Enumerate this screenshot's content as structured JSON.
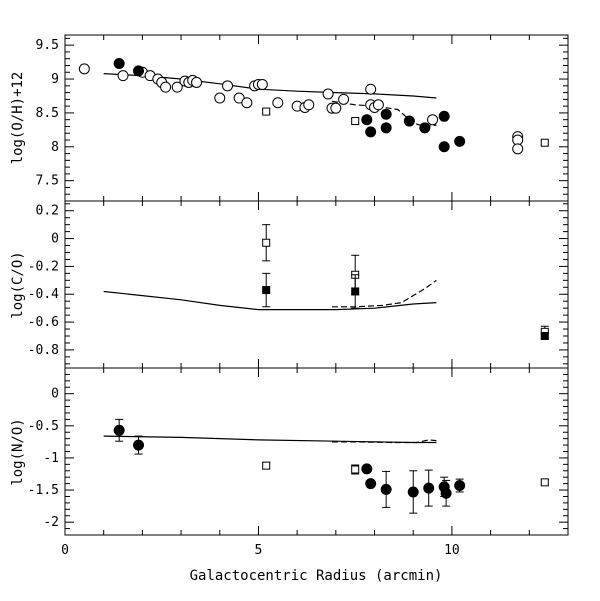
{
  "chart_data": [
    {
      "type": "scatter",
      "panel": "top",
      "ylabel": "log(O/H)+12",
      "xlim": [
        0,
        13
      ],
      "ylim": [
        7.2,
        9.65
      ],
      "x_ticks_major": [
        0,
        5,
        10
      ],
      "y_ticks_major": [
        7.5,
        8,
        8.5,
        9,
        9.5
      ],
      "y_tick_labels": [
        "7.5",
        "8",
        "8.5",
        "9",
        "9.5"
      ],
      "series": [
        {
          "marker": "open-circle",
          "points": [
            {
              "x": 0.5,
              "y": 9.15
            },
            {
              "x": 1.5,
              "y": 9.05
            },
            {
              "x": 2.0,
              "y": 9.1
            },
            {
              "x": 2.2,
              "y": 9.05
            },
            {
              "x": 2.4,
              "y": 9.0
            },
            {
              "x": 2.5,
              "y": 8.95
            },
            {
              "x": 2.6,
              "y": 8.88
            },
            {
              "x": 2.9,
              "y": 8.88
            },
            {
              "x": 3.1,
              "y": 8.97
            },
            {
              "x": 3.2,
              "y": 8.95
            },
            {
              "x": 3.3,
              "y": 8.98
            },
            {
              "x": 3.4,
              "y": 8.95
            },
            {
              "x": 4.0,
              "y": 8.72
            },
            {
              "x": 4.2,
              "y": 8.9
            },
            {
              "x": 4.5,
              "y": 8.72
            },
            {
              "x": 4.7,
              "y": 8.65
            },
            {
              "x": 4.9,
              "y": 8.9
            },
            {
              "x": 5.0,
              "y": 8.92
            },
            {
              "x": 5.1,
              "y": 8.92
            },
            {
              "x": 5.5,
              "y": 8.65
            },
            {
              "x": 6.0,
              "y": 8.6
            },
            {
              "x": 6.2,
              "y": 8.58
            },
            {
              "x": 6.3,
              "y": 8.62
            },
            {
              "x": 6.8,
              "y": 8.78
            },
            {
              "x": 6.9,
              "y": 8.57
            },
            {
              "x": 7.0,
              "y": 8.57
            },
            {
              "x": 7.2,
              "y": 8.7
            },
            {
              "x": 7.9,
              "y": 8.85
            },
            {
              "x": 7.9,
              "y": 8.62
            },
            {
              "x": 8.0,
              "y": 8.58
            },
            {
              "x": 8.1,
              "y": 8.62
            },
            {
              "x": 9.5,
              "y": 8.4
            },
            {
              "x": 11.7,
              "y": 8.15
            },
            {
              "x": 11.7,
              "y": 8.1
            },
            {
              "x": 11.7,
              "y": 7.97
            }
          ]
        },
        {
          "marker": "filled-circle",
          "points": [
            {
              "x": 1.4,
              "y": 9.23
            },
            {
              "x": 1.9,
              "y": 9.12
            },
            {
              "x": 7.8,
              "y": 8.4
            },
            {
              "x": 7.9,
              "y": 8.22
            },
            {
              "x": 8.3,
              "y": 8.48
            },
            {
              "x": 8.3,
              "y": 8.28
            },
            {
              "x": 8.9,
              "y": 8.38
            },
            {
              "x": 9.3,
              "y": 8.28
            },
            {
              "x": 9.8,
              "y": 8.45
            },
            {
              "x": 9.8,
              "y": 8.0
            },
            {
              "x": 10.2,
              "y": 8.08
            }
          ]
        },
        {
          "marker": "open-square",
          "points": [
            {
              "x": 5.2,
              "y": 8.52,
              "err": 0.03
            },
            {
              "x": 7.5,
              "y": 8.38,
              "err": 0.03
            },
            {
              "x": 12.4,
              "y": 8.06,
              "err": 0.03
            }
          ]
        }
      ],
      "models": [
        {
          "style": "solid",
          "points": [
            [
              1,
              9.08
            ],
            [
              2,
              9.05
            ],
            [
              3,
              9.0
            ],
            [
              4,
              8.93
            ],
            [
              5,
              8.85
            ],
            [
              6,
              8.82
            ],
            [
              7,
              8.8
            ],
            [
              8,
              8.78
            ],
            [
              9,
              8.75
            ],
            [
              9.6,
              8.72
            ]
          ]
        },
        {
          "style": "dashed",
          "points": [
            [
              6.9,
              8.67
            ],
            [
              7.5,
              8.62
            ],
            [
              8.0,
              8.6
            ],
            [
              8.6,
              8.55
            ],
            [
              9.0,
              8.35
            ],
            [
              9.3,
              8.3
            ],
            [
              9.6,
              8.32
            ]
          ]
        }
      ]
    },
    {
      "type": "scatter",
      "panel": "middle",
      "ylabel": "log(C/O)",
      "xlim": [
        0,
        13
      ],
      "ylim": [
        -0.93,
        0.27
      ],
      "x_ticks_major": [
        0,
        5,
        10
      ],
      "y_ticks_major": [
        -0.8,
        -0.6,
        -0.4,
        -0.2,
        0,
        0.2
      ],
      "y_tick_labels": [
        "-0.8",
        "-0.6",
        "-0.4",
        "-0.2",
        "0",
        "0.2"
      ],
      "series": [
        {
          "marker": "open-square",
          "points": [
            {
              "x": 5.2,
              "y": -0.03,
              "err": 0.13
            },
            {
              "x": 7.5,
              "y": -0.26,
              "err": 0.14
            },
            {
              "x": 12.4,
              "y": -0.67,
              "err": 0.04
            }
          ]
        },
        {
          "marker": "filled-square",
          "points": [
            {
              "x": 5.2,
              "y": -0.37,
              "err": 0.12
            },
            {
              "x": 7.5,
              "y": -0.38,
              "err": 0.12
            },
            {
              "x": 12.4,
              "y": -0.7,
              "err": 0.02
            }
          ]
        }
      ],
      "models": [
        {
          "style": "solid",
          "points": [
            [
              1,
              -0.38
            ],
            [
              2,
              -0.41
            ],
            [
              3,
              -0.44
            ],
            [
              4,
              -0.48
            ],
            [
              5,
              -0.51
            ],
            [
              6,
              -0.51
            ],
            [
              7,
              -0.51
            ],
            [
              8,
              -0.5
            ],
            [
              9,
              -0.47
            ],
            [
              9.6,
              -0.46
            ]
          ]
        },
        {
          "style": "dashed",
          "points": [
            [
              6.9,
              -0.49
            ],
            [
              7.5,
              -0.49
            ],
            [
              8.2,
              -0.48
            ],
            [
              8.7,
              -0.46
            ],
            [
              9.0,
              -0.41
            ],
            [
              9.3,
              -0.36
            ],
            [
              9.6,
              -0.3
            ]
          ]
        }
      ]
    },
    {
      "type": "scatter",
      "panel": "bottom",
      "ylabel": "log(N/O)",
      "xlabel": "Galactocentric Radius (arcmin)",
      "xlim": [
        0,
        13
      ],
      "ylim": [
        -2.2,
        0.4
      ],
      "x_ticks_major": [
        0,
        5,
        10
      ],
      "x_tick_labels": [
        "0",
        "5",
        "10"
      ],
      "y_ticks_major": [
        -2,
        -1.5,
        -1,
        -0.5,
        0
      ],
      "y_tick_labels": [
        "-2",
        "-1.5",
        "-1",
        "-0.5",
        "0"
      ],
      "series": [
        {
          "marker": "filled-circle",
          "points": [
            {
              "x": 1.4,
              "y": -0.57,
              "err": 0.17
            },
            {
              "x": 1.9,
              "y": -0.8,
              "err": 0.14
            },
            {
              "x": 7.8,
              "y": -1.17,
              "err": 0.03
            },
            {
              "x": 7.9,
              "y": -1.4,
              "err": 0.05
            },
            {
              "x": 8.3,
              "y": -1.49,
              "err": 0.28
            },
            {
              "x": 9.0,
              "y": -1.53,
              "err": 0.33
            },
            {
              "x": 9.4,
              "y": -1.47,
              "err": 0.28
            },
            {
              "x": 9.8,
              "y": -1.45,
              "err": 0.15
            },
            {
              "x": 9.85,
              "y": -1.55,
              "err": 0.2
            },
            {
              "x": 10.2,
              "y": -1.43,
              "err": 0.1
            }
          ]
        },
        {
          "marker": "open-square",
          "points": [
            {
              "x": 5.2,
              "y": -1.12,
              "err": 0.05
            },
            {
              "x": 7.5,
              "y": -1.18,
              "err": 0.07
            },
            {
              "x": 12.4,
              "y": -1.38,
              "err": 0.04
            }
          ]
        }
      ],
      "models": [
        {
          "style": "solid",
          "points": [
            [
              1,
              -0.66
            ],
            [
              3,
              -0.68
            ],
            [
              5,
              -0.72
            ],
            [
              7,
              -0.74
            ],
            [
              9,
              -0.76
            ],
            [
              9.6,
              -0.76
            ]
          ]
        },
        {
          "style": "dashed",
          "points": [
            [
              6.9,
              -0.75
            ],
            [
              7.5,
              -0.75
            ],
            [
              8.5,
              -0.76
            ],
            [
              9.1,
              -0.76
            ],
            [
              9.4,
              -0.72
            ],
            [
              9.6,
              -0.73
            ]
          ]
        }
      ]
    }
  ]
}
